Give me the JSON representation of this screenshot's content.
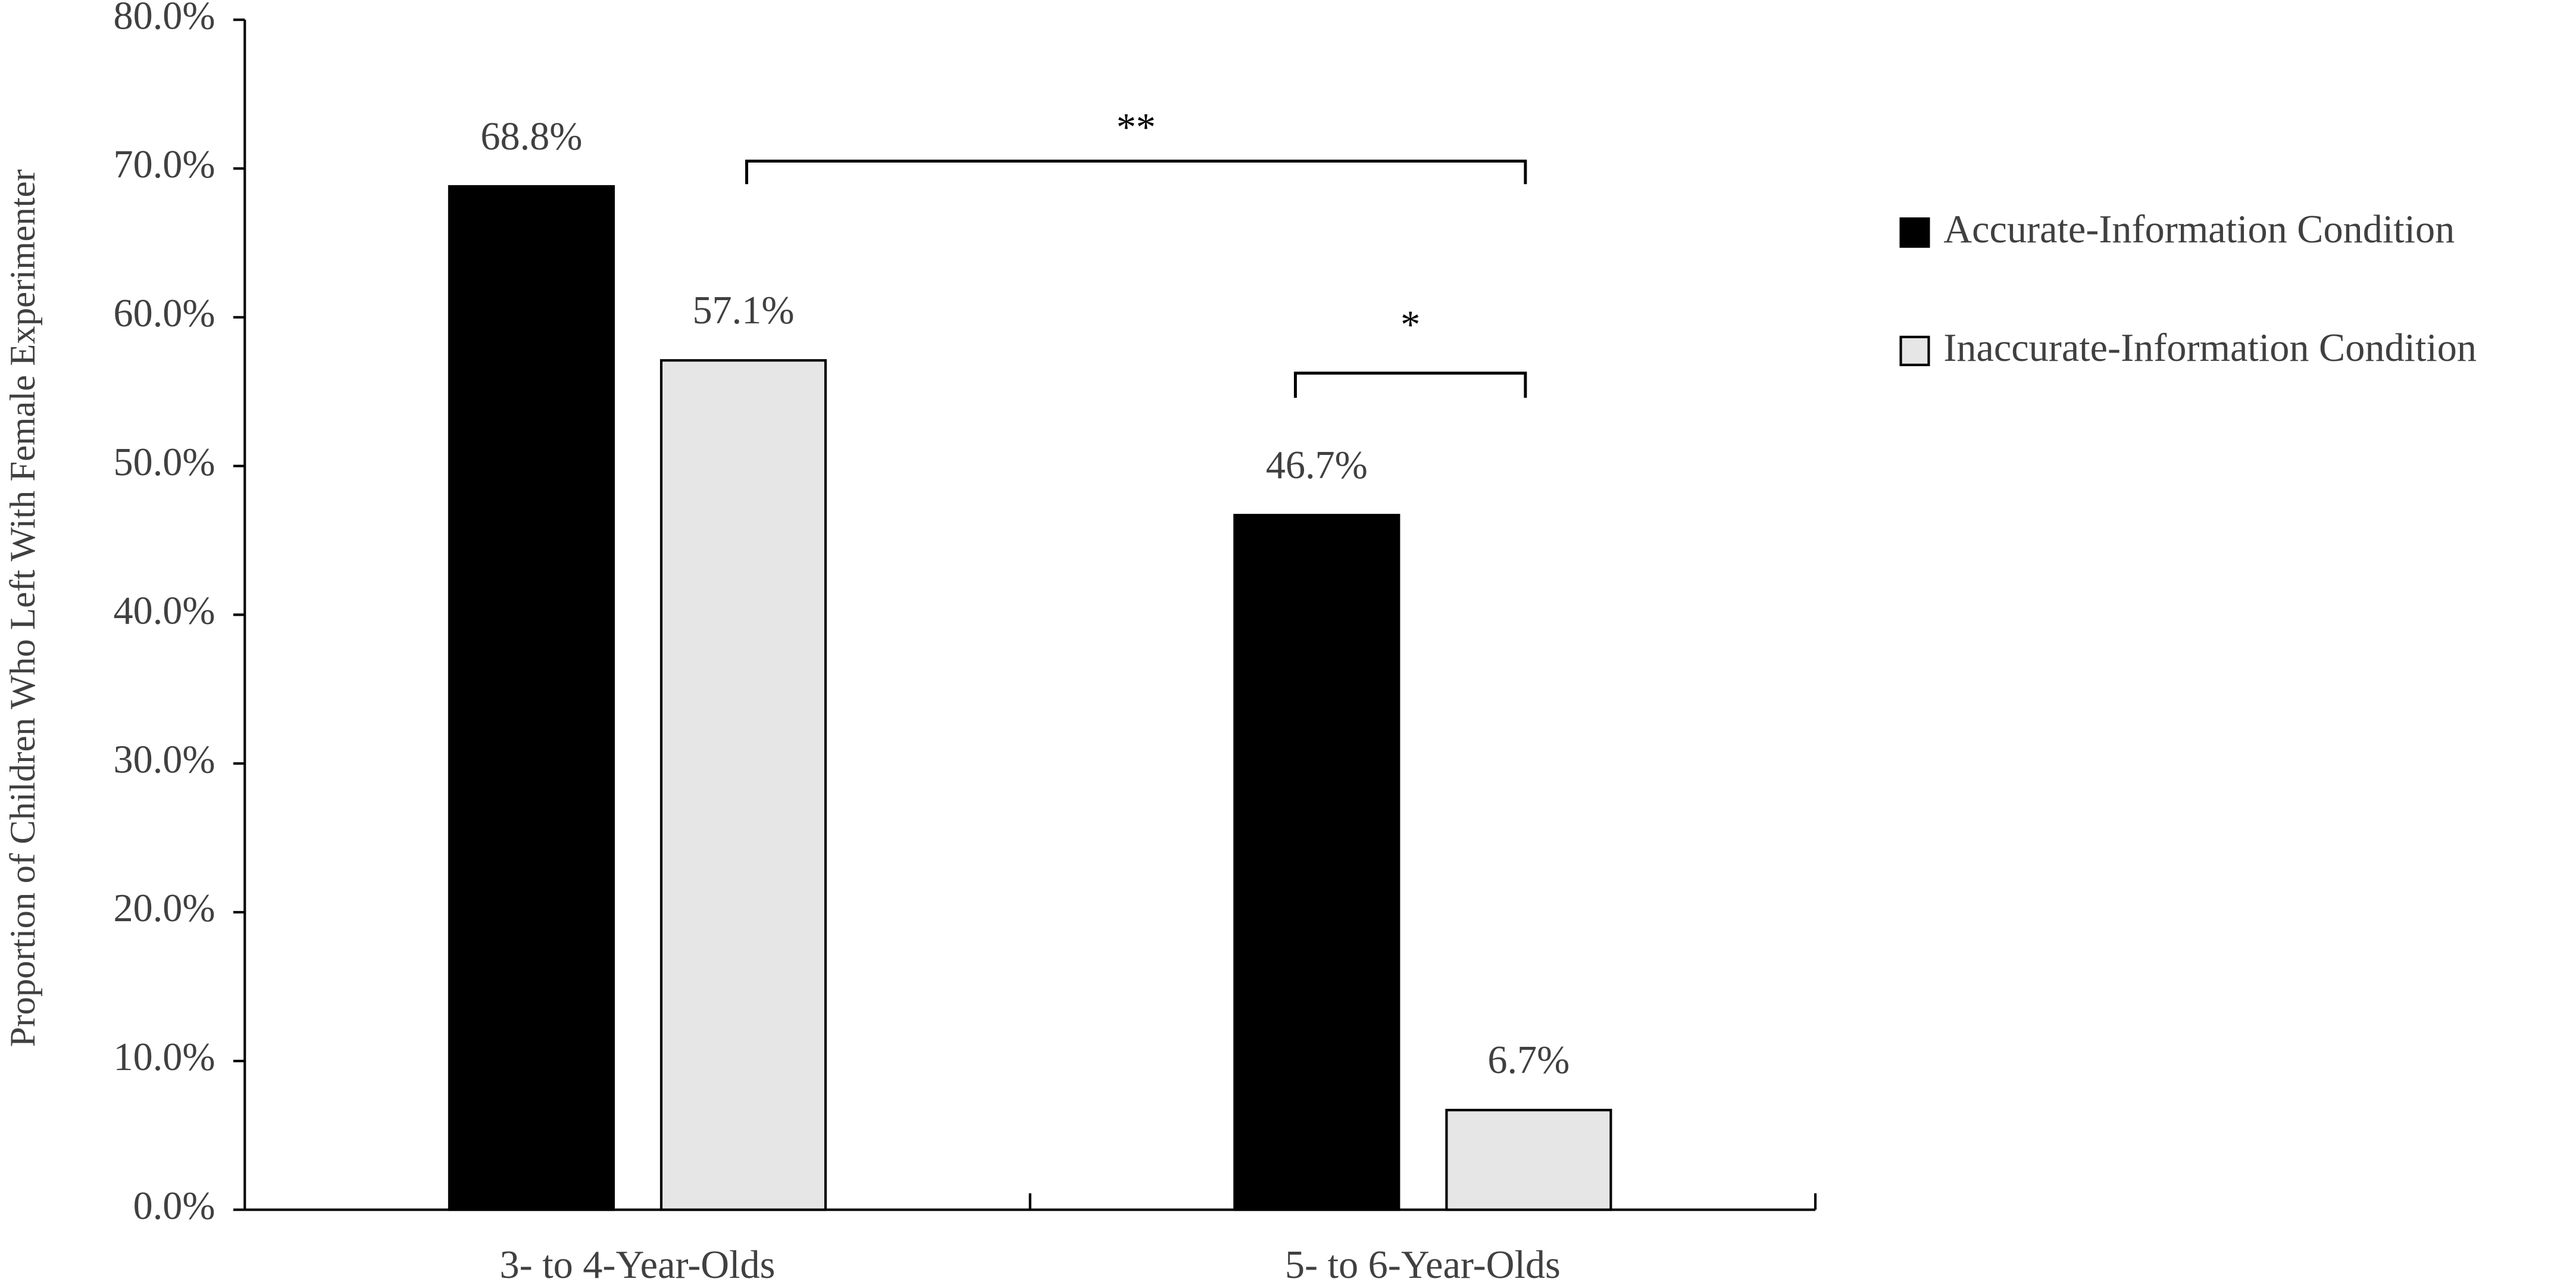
{
  "chart_data": {
    "type": "bar",
    "y_label": "Proportion of Children Who Left With Female Experimenter",
    "categories": [
      "3- to 4-Year-Olds",
      "5- to 6-Year-Olds"
    ],
    "series": [
      {
        "name": "Accurate-Information Condition",
        "color": "#000000",
        "values": [
          68.8,
          46.7
        ],
        "value_labels": [
          "68.8%",
          "46.7%"
        ]
      },
      {
        "name": "Inaccurate-Information Condition",
        "color": "#e6e6e6",
        "values": [
          57.1,
          6.7
        ],
        "value_labels": [
          "57.1%",
          "6.7%"
        ]
      }
    ],
    "ylim": [
      0,
      80
    ],
    "yticks": [
      {
        "value": 0,
        "label": "0.0%"
      },
      {
        "value": 10,
        "label": "10.0%"
      },
      {
        "value": 20,
        "label": "20.0%"
      },
      {
        "value": 30,
        "label": "30.0%"
      },
      {
        "value": 40,
        "label": "40.0%"
      },
      {
        "value": 50,
        "label": "50.0%"
      },
      {
        "value": 60,
        "label": "60.0%"
      },
      {
        "value": 70,
        "label": "70.0%"
      },
      {
        "value": 80,
        "label": "80.0%"
      }
    ],
    "annotations": [
      {
        "text": "**"
      },
      {
        "text": "*"
      }
    ],
    "legend": "right"
  }
}
